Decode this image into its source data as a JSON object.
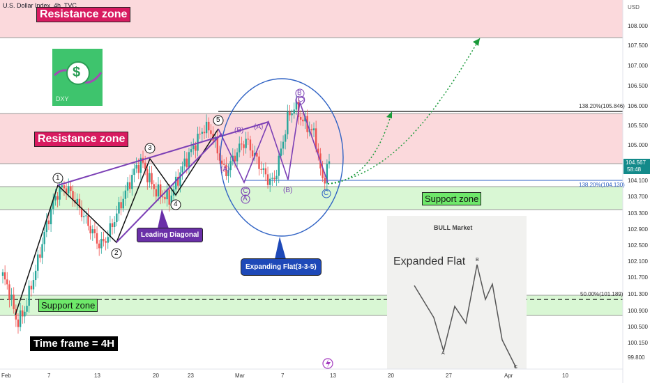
{
  "header": {
    "symbol_title": "U.S. Dollar Index, 4h, TVC"
  },
  "price_axis": {
    "currency": "USD",
    "ticks": [
      "108.000",
      "107.500",
      "107.000",
      "106.500",
      "106.000",
      "105.500",
      "105.000",
      "104.100",
      "103.700",
      "103.300",
      "102.900",
      "102.500",
      "102.100",
      "101.700",
      "101.300",
      "100.900",
      "100.500",
      "100.150",
      "99.800"
    ],
    "current_price": "104.567",
    "countdown": "58:48"
  },
  "time_axis": {
    "ticks": [
      "Feb",
      "7",
      "13",
      "20",
      "23",
      "Mar",
      "7",
      "13",
      "20",
      "27",
      "Apr",
      "10"
    ]
  },
  "zones": {
    "resistance_top_label": "Resistance zone",
    "resistance_mid_label": "Resistance zone",
    "support_mid_label": "Support zone",
    "support_low_label": "Support zone",
    "colors": {
      "resistance": "#fbd9dc",
      "support": "#d9f7d4"
    }
  },
  "fib_levels": [
    {
      "label": "138.20%(105.846)",
      "price": 105.846
    },
    {
      "label": "138.20%(104.130)",
      "price": 104.13
    },
    {
      "label": "50.00%(101.189)",
      "price": 101.189
    }
  ],
  "wave_labels": {
    "impulse": [
      "1",
      "2",
      "3",
      "4",
      "5"
    ],
    "a_upper": "(A)",
    "b_upper": "(B)",
    "a_upper2": "(A)",
    "c_mid": "(C)",
    "a_mid": "A",
    "b_mid": "(B)",
    "b_top": "B",
    "c_top": "(C)",
    "c_low": "C",
    "a_left": "(A)"
  },
  "callouts": {
    "leading_diagonal": "Leading Diagonal",
    "expanding_flat": "Expanding Flat(3-3-5)",
    "time_frame": "Time frame = 4H"
  },
  "inset": {
    "title": "BULL Market",
    "subtitle": "Expanded Flat",
    "points": [
      "A",
      "B",
      "C"
    ]
  },
  "logo": {
    "text": "DXY",
    "symbol": "$"
  },
  "colors": {
    "bull_candle": "#26a69a",
    "bear_candle": "#ef5350",
    "wave_purple": "#7b3fb5",
    "circle_blue": "#2f62c4",
    "projection_green": "#1a9a3a",
    "price_badge": "#138a8a"
  },
  "chart_data": {
    "type": "candlestick",
    "title": "U.S. Dollar Index, 4h, TVC",
    "x_ticks": [
      "Feb",
      "7",
      "13",
      "20",
      "23",
      "Mar",
      "7",
      "13",
      "20",
      "27",
      "Apr",
      "10"
    ],
    "y_unit": "USD",
    "ylim": [
      99.7,
      108.4
    ],
    "close_path": [
      101.9,
      101.5,
      100.8,
      101.0,
      101.6,
      102.2,
      102.9,
      103.5,
      103.9,
      104.0,
      103.8,
      103.5,
      103.2,
      102.9,
      102.6,
      102.8,
      103.2,
      103.6,
      104.0,
      104.4,
      104.6,
      104.2,
      103.9,
      103.8,
      103.7,
      104.1,
      104.5,
      104.8,
      105.1,
      105.4,
      105.3,
      104.8,
      104.3,
      104.6,
      104.9,
      105.1,
      104.8,
      104.5,
      104.2,
      104.1,
      104.8,
      105.6,
      105.9,
      105.6,
      105.4,
      105.2,
      104.1,
      104.567
    ],
    "resistance_zones": [
      [
        107.8,
        108.4
      ],
      [
        104.6,
        105.9
      ]
    ],
    "support_zones": [
      [
        103.4,
        103.9
      ],
      [
        100.9,
        101.3
      ]
    ],
    "fib_lines": [
      105.846,
      104.13,
      101.189
    ],
    "current": 104.567
  }
}
